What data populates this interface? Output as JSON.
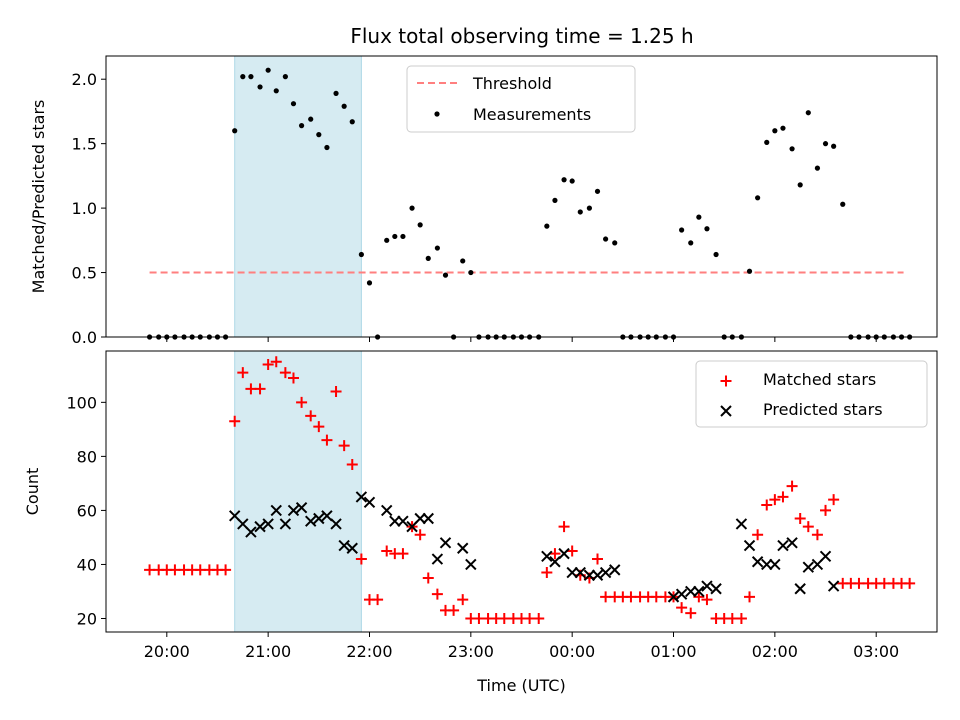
{
  "figure_title": "Flux total observing time = 1.25 h",
  "chart_data": [
    {
      "type": "scatter",
      "ylabel": "Matched/Predicted stars",
      "ylim": [
        0,
        2.18
      ],
      "yticks": [
        0.0,
        0.5,
        1.0,
        1.5,
        2.0
      ],
      "ytick_labels": [
        "0.0",
        "0.5",
        "1.0",
        "1.5",
        "2.0"
      ],
      "x_is_time_hours": true,
      "xlim": [
        19.4,
        27.6
      ],
      "highlight_span": [
        20.67,
        21.92
      ],
      "highlight_color": "#add8e6",
      "threshold": {
        "name": "Threshold",
        "value": 0.5,
        "x_range": [
          19.83,
          27.27
        ],
        "color": "#ff7f7f",
        "style": "dashed"
      },
      "legend": {
        "placement": "upper center",
        "entries": [
          "Threshold",
          "Measurements"
        ]
      },
      "series": [
        {
          "name": "Measurements",
          "color": "#000000",
          "marker": "dot",
          "points": [
            [
              19.83,
              0
            ],
            [
              19.92,
              0
            ],
            [
              20.0,
              0
            ],
            [
              20.08,
              0
            ],
            [
              20.17,
              0
            ],
            [
              20.25,
              0
            ],
            [
              20.33,
              0
            ],
            [
              20.42,
              0
            ],
            [
              20.5,
              0
            ],
            [
              20.58,
              0
            ],
            [
              20.67,
              1.6
            ],
            [
              20.75,
              2.02
            ],
            [
              20.83,
              2.02
            ],
            [
              20.92,
              1.94
            ],
            [
              21.0,
              2.07
            ],
            [
              21.08,
              1.91
            ],
            [
              21.17,
              2.02
            ],
            [
              21.25,
              1.81
            ],
            [
              21.33,
              1.64
            ],
            [
              21.42,
              1.69
            ],
            [
              21.5,
              1.57
            ],
            [
              21.58,
              1.47
            ],
            [
              21.67,
              1.89
            ],
            [
              21.75,
              1.79
            ],
            [
              21.83,
              1.67
            ],
            [
              21.92,
              0.64
            ],
            [
              22.0,
              0.42
            ],
            [
              22.08,
              0
            ],
            [
              22.17,
              0.75
            ],
            [
              22.25,
              0.78
            ],
            [
              22.33,
              0.78
            ],
            [
              22.42,
              1.0
            ],
            [
              22.5,
              0.87
            ],
            [
              22.58,
              0.61
            ],
            [
              22.67,
              0.69
            ],
            [
              22.75,
              0.48
            ],
            [
              22.83,
              0
            ],
            [
              22.92,
              0.59
            ],
            [
              23.0,
              0.5
            ],
            [
              23.08,
              0
            ],
            [
              23.17,
              0
            ],
            [
              23.25,
              0
            ],
            [
              23.33,
              0
            ],
            [
              23.42,
              0
            ],
            [
              23.5,
              0
            ],
            [
              23.58,
              0
            ],
            [
              23.67,
              0
            ],
            [
              23.75,
              0.86
            ],
            [
              23.83,
              1.06
            ],
            [
              23.92,
              1.22
            ],
            [
              24.0,
              1.21
            ],
            [
              24.08,
              0.97
            ],
            [
              24.17,
              1.0
            ],
            [
              24.25,
              1.13
            ],
            [
              24.33,
              0.76
            ],
            [
              24.42,
              0.73
            ],
            [
              24.5,
              0
            ],
            [
              24.58,
              0
            ],
            [
              24.67,
              0
            ],
            [
              24.75,
              0
            ],
            [
              24.83,
              0
            ],
            [
              24.92,
              0
            ],
            [
              25.0,
              0
            ],
            [
              25.08,
              0.83
            ],
            [
              25.17,
              0.73
            ],
            [
              25.25,
              0.93
            ],
            [
              25.33,
              0.84
            ],
            [
              25.42,
              0.64
            ],
            [
              25.5,
              0
            ],
            [
              25.58,
              0
            ],
            [
              25.67,
              0
            ],
            [
              25.75,
              0.51
            ],
            [
              25.83,
              1.08
            ],
            [
              25.92,
              1.51
            ],
            [
              26.0,
              1.6
            ],
            [
              26.08,
              1.62
            ],
            [
              26.17,
              1.46
            ],
            [
              26.25,
              1.18
            ],
            [
              26.33,
              1.74
            ],
            [
              26.42,
              1.31
            ],
            [
              26.5,
              1.5
            ],
            [
              26.58,
              1.48
            ],
            [
              26.67,
              1.03
            ],
            [
              26.75,
              0
            ],
            [
              26.83,
              0
            ],
            [
              26.92,
              0
            ],
            [
              27.0,
              0
            ],
            [
              27.08,
              0
            ],
            [
              27.17,
              0
            ],
            [
              27.25,
              0
            ],
            [
              27.33,
              0
            ]
          ]
        }
      ]
    },
    {
      "type": "scatter",
      "xlabel": "Time (UTC)",
      "ylabel": "Count",
      "ylim": [
        15,
        119
      ],
      "yticks": [
        20,
        40,
        60,
        80,
        100
      ],
      "ytick_labels": [
        "20",
        "40",
        "60",
        "80",
        "100"
      ],
      "x_is_time_hours": true,
      "xlim": [
        19.4,
        27.6
      ],
      "xticks": [
        20,
        21,
        22,
        23,
        24,
        25,
        26,
        27
      ],
      "xtick_labels": [
        "20:00",
        "21:00",
        "22:00",
        "23:00",
        "00:00",
        "01:00",
        "02:00",
        "03:00"
      ],
      "highlight_span": [
        20.67,
        21.92
      ],
      "highlight_color": "#add8e6",
      "legend": {
        "placement": "upper right",
        "entries": [
          "Matched stars",
          "Predicted stars"
        ]
      },
      "series": [
        {
          "name": "Matched stars",
          "color": "#ff0000",
          "marker": "plus",
          "points": [
            [
              19.83,
              38
            ],
            [
              19.92,
              38
            ],
            [
              20.0,
              38
            ],
            [
              20.08,
              38
            ],
            [
              20.17,
              38
            ],
            [
              20.25,
              38
            ],
            [
              20.33,
              38
            ],
            [
              20.42,
              38
            ],
            [
              20.5,
              38
            ],
            [
              20.58,
              38
            ],
            [
              20.67,
              93
            ],
            [
              20.75,
              111
            ],
            [
              20.83,
              105
            ],
            [
              20.92,
              105
            ],
            [
              21.0,
              114
            ],
            [
              21.08,
              115
            ],
            [
              21.17,
              111
            ],
            [
              21.25,
              109
            ],
            [
              21.33,
              100
            ],
            [
              21.42,
              95
            ],
            [
              21.5,
              91
            ],
            [
              21.58,
              86
            ],
            [
              21.67,
              104
            ],
            [
              21.75,
              84
            ],
            [
              21.83,
              77
            ],
            [
              21.92,
              42
            ],
            [
              22.0,
              27
            ],
            [
              22.08,
              27
            ],
            [
              22.17,
              45
            ],
            [
              22.25,
              44
            ],
            [
              22.33,
              44
            ],
            [
              22.42,
              54
            ],
            [
              22.5,
              51
            ],
            [
              22.58,
              35
            ],
            [
              22.67,
              29
            ],
            [
              22.75,
              23
            ],
            [
              22.83,
              23
            ],
            [
              22.92,
              27
            ],
            [
              23.0,
              20
            ],
            [
              23.08,
              20
            ],
            [
              23.17,
              20
            ],
            [
              23.25,
              20
            ],
            [
              23.33,
              20
            ],
            [
              23.42,
              20
            ],
            [
              23.5,
              20
            ],
            [
              23.58,
              20
            ],
            [
              23.67,
              20
            ],
            [
              23.75,
              37
            ],
            [
              23.83,
              44
            ],
            [
              23.92,
              54
            ],
            [
              24.0,
              45
            ],
            [
              24.08,
              36
            ],
            [
              24.17,
              35
            ],
            [
              24.25,
              42
            ],
            [
              24.33,
              28
            ],
            [
              24.42,
              28
            ],
            [
              24.5,
              28
            ],
            [
              24.58,
              28
            ],
            [
              24.67,
              28
            ],
            [
              24.75,
              28
            ],
            [
              24.83,
              28
            ],
            [
              24.92,
              28
            ],
            [
              25.0,
              28
            ],
            [
              25.08,
              24
            ],
            [
              25.17,
              22
            ],
            [
              25.25,
              28
            ],
            [
              25.33,
              27
            ],
            [
              25.42,
              20
            ],
            [
              25.5,
              20
            ],
            [
              25.58,
              20
            ],
            [
              25.67,
              20
            ],
            [
              25.75,
              28
            ],
            [
              25.83,
              51
            ],
            [
              25.92,
              62
            ],
            [
              26.0,
              64
            ],
            [
              26.08,
              65
            ],
            [
              26.17,
              69
            ],
            [
              26.25,
              57
            ],
            [
              26.33,
              54
            ],
            [
              26.42,
              51
            ],
            [
              26.5,
              60
            ],
            [
              26.58,
              64
            ],
            [
              26.67,
              33
            ],
            [
              26.75,
              33
            ],
            [
              26.83,
              33
            ],
            [
              26.92,
              33
            ],
            [
              27.0,
              33
            ],
            [
              27.08,
              33
            ],
            [
              27.17,
              33
            ],
            [
              27.25,
              33
            ],
            [
              27.33,
              33
            ]
          ]
        },
        {
          "name": "Predicted stars",
          "color": "#000000",
          "marker": "x",
          "points": [
            [
              20.67,
              58
            ],
            [
              20.75,
              55
            ],
            [
              20.83,
              52
            ],
            [
              20.92,
              54
            ],
            [
              21.0,
              55
            ],
            [
              21.08,
              60
            ],
            [
              21.17,
              55
            ],
            [
              21.25,
              60
            ],
            [
              21.33,
              61
            ],
            [
              21.42,
              56
            ],
            [
              21.5,
              57
            ],
            [
              21.58,
              58
            ],
            [
              21.67,
              55
            ],
            [
              21.75,
              47
            ],
            [
              21.83,
              46
            ],
            [
              21.92,
              65
            ],
            [
              22.0,
              63
            ],
            [
              22.17,
              60
            ],
            [
              22.25,
              56
            ],
            [
              22.33,
              56
            ],
            [
              22.42,
              54
            ],
            [
              22.5,
              57
            ],
            [
              22.58,
              57
            ],
            [
              22.67,
              42
            ],
            [
              22.75,
              48
            ],
            [
              22.92,
              46
            ],
            [
              23.0,
              40
            ],
            [
              23.75,
              43
            ],
            [
              23.83,
              41
            ],
            [
              23.92,
              44
            ],
            [
              24.0,
              37
            ],
            [
              24.08,
              37
            ],
            [
              24.17,
              36
            ],
            [
              24.25,
              36
            ],
            [
              24.33,
              37
            ],
            [
              24.42,
              38
            ],
            [
              25.0,
              28
            ],
            [
              25.08,
              29
            ],
            [
              25.17,
              30
            ],
            [
              25.25,
              30
            ],
            [
              25.33,
              32
            ],
            [
              25.42,
              31
            ],
            [
              25.67,
              55
            ],
            [
              25.75,
              47
            ],
            [
              25.83,
              41
            ],
            [
              25.92,
              40
            ],
            [
              26.0,
              40
            ],
            [
              26.08,
              47
            ],
            [
              26.17,
              48
            ],
            [
              26.25,
              31
            ],
            [
              26.33,
              39
            ],
            [
              26.42,
              40
            ],
            [
              26.5,
              43
            ],
            [
              26.58,
              32
            ]
          ]
        }
      ]
    }
  ]
}
